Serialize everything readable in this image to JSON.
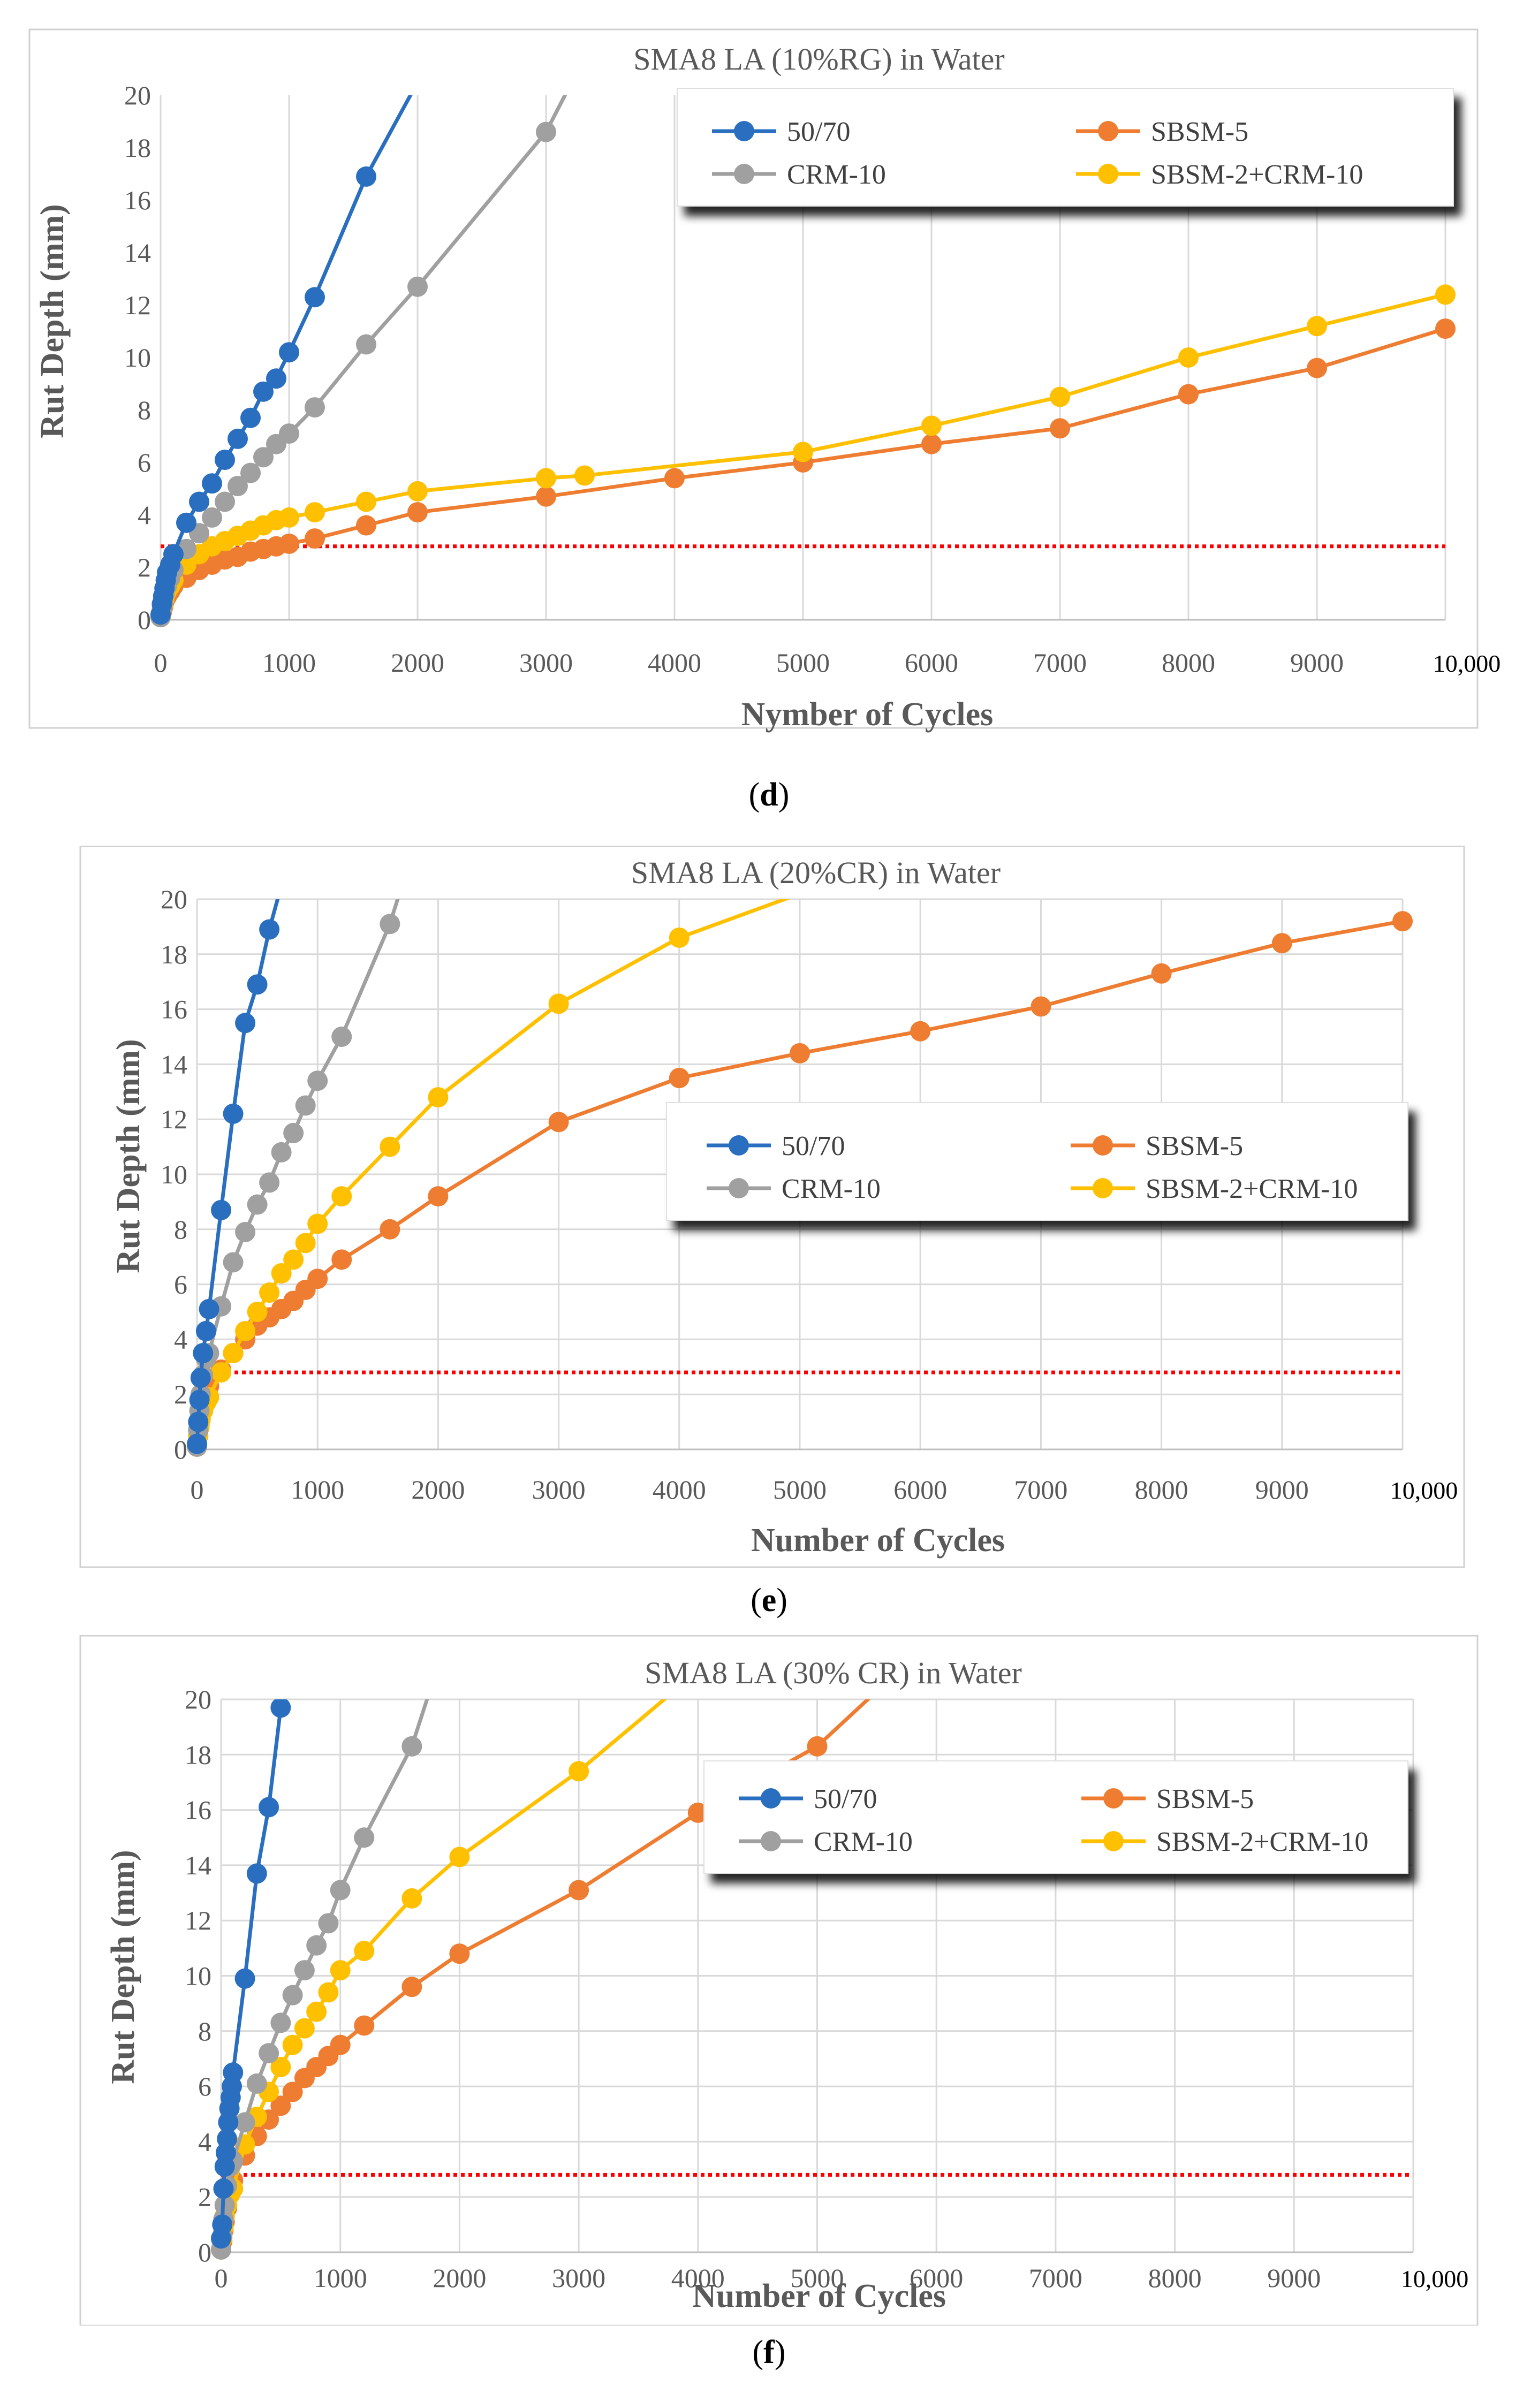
{
  "colors": {
    "c5070": "#2A6FBF",
    "sbsm5": "#EE7D31",
    "crm10": "#A0A0A0",
    "sbsm2crm10": "#FFC000",
    "threshold": "#FF0000",
    "grid": "#D9D9D9"
  },
  "captions": [
    {
      "open": "(",
      "letter": "d",
      "close": ")"
    },
    {
      "open": "(",
      "letter": "e",
      "close": ")"
    },
    {
      "open": "(",
      "letter": "f",
      "close": ")"
    }
  ],
  "chart_data": [
    {
      "type": "line",
      "title": "SMA8 LA (10%RG) in Water",
      "xlabel": "Nymber of Cycles",
      "ylabel": "Rut Depth (mm)",
      "xlim": [
        0,
        10000
      ],
      "ylim": [
        0,
        20
      ],
      "x_ticks": [
        0,
        1000,
        2000,
        3000,
        4000,
        5000,
        6000,
        7000,
        8000,
        9000,
        10000
      ],
      "x_tick_labels": [
        "0",
        "1000",
        "2000",
        "3000",
        "4000",
        "5000",
        "6000",
        "7000",
        "8000",
        "9000",
        "10,000"
      ],
      "y_ticks": [
        0,
        2,
        4,
        6,
        8,
        10,
        12,
        14,
        16,
        18,
        20
      ],
      "y_tick_labels": [
        "0",
        "2",
        "4",
        "6",
        "8",
        "10",
        "12",
        "14",
        "16",
        "18",
        "20"
      ],
      "grid": "vertical",
      "legend": "top-right",
      "threshold": 2.8,
      "series": [
        {
          "name": "50/70",
          "color": "#2A6FBF",
          "x": [
            0,
            10,
            20,
            30,
            40,
            50,
            75,
            100,
            200,
            300,
            400,
            500,
            600,
            700,
            800,
            900,
            1000,
            1200,
            1600,
            2000
          ],
          "y": [
            0.2,
            0.6,
            0.9,
            1.2,
            1.5,
            1.8,
            2.1,
            2.5,
            3.7,
            4.5,
            5.2,
            6.1,
            6.9,
            7.7,
            8.7,
            9.2,
            10.2,
            12.3,
            16.9,
            20.5
          ]
        },
        {
          "name": "SBSM-5",
          "color": "#EE7D31",
          "x": [
            0,
            10,
            20,
            30,
            50,
            75,
            100,
            200,
            300,
            400,
            500,
            600,
            700,
            800,
            900,
            1000,
            1200,
            1600,
            2000,
            3000,
            4000,
            5000,
            6000,
            7000,
            8000,
            9000,
            10000
          ],
          "y": [
            0.1,
            0.3,
            0.5,
            0.7,
            0.9,
            1.1,
            1.3,
            1.6,
            1.9,
            2.1,
            2.3,
            2.4,
            2.6,
            2.7,
            2.8,
            2.9,
            3.1,
            3.6,
            4.1,
            4.7,
            5.4,
            6.0,
            6.7,
            7.3,
            8.6,
            9.6,
            11.1
          ]
        },
        {
          "name": "CRM-10",
          "color": "#A0A0A0",
          "x": [
            0,
            10,
            20,
            30,
            50,
            75,
            100,
            200,
            300,
            400,
            500,
            600,
            700,
            800,
            900,
            1000,
            1200,
            1600,
            2000,
            3000,
            3200
          ],
          "y": [
            0.1,
            0.4,
            0.7,
            1.0,
            1.3,
            1.6,
            1.9,
            2.7,
            3.3,
            3.9,
            4.5,
            5.1,
            5.6,
            6.2,
            6.7,
            7.1,
            8.1,
            10.5,
            12.7,
            18.6,
            20.5
          ]
        },
        {
          "name": "SBSM-2+CRM-10",
          "color": "#FFC000",
          "x": [
            0,
            10,
            20,
            30,
            50,
            75,
            100,
            200,
            300,
            400,
            500,
            600,
            700,
            800,
            900,
            1000,
            1200,
            1600,
            2000,
            3000,
            3300,
            5000,
            6000,
            7000,
            8000,
            9000,
            10000
          ],
          "y": [
            0.1,
            0.4,
            0.6,
            0.8,
            1.1,
            1.3,
            1.5,
            2.1,
            2.5,
            2.8,
            3.0,
            3.2,
            3.4,
            3.6,
            3.8,
            3.9,
            4.1,
            4.5,
            4.9,
            5.4,
            5.5,
            6.4,
            7.4,
            8.5,
            10.0,
            11.2,
            12.4
          ]
        }
      ]
    },
    {
      "type": "line",
      "title": "SMA8 LA (20%CR) in Water",
      "xlabel": "Number of Cycles",
      "ylabel": "Rut Depth (mm)",
      "xlim": [
        0,
        10000
      ],
      "ylim": [
        0,
        20
      ],
      "x_ticks": [
        0,
        1000,
        2000,
        3000,
        4000,
        5000,
        6000,
        7000,
        8000,
        9000,
        10000
      ],
      "x_tick_labels": [
        "0",
        "1000",
        "2000",
        "3000",
        "4000",
        "5000",
        "6000",
        "7000",
        "8000",
        "9000",
        "10,000"
      ],
      "y_ticks": [
        0,
        2,
        4,
        6,
        8,
        10,
        12,
        14,
        16,
        18,
        20
      ],
      "y_tick_labels": [
        "0",
        "2",
        "4",
        "6",
        "8",
        "10",
        "12",
        "14",
        "16",
        "18",
        "20"
      ],
      "grid": "both",
      "legend": "center-right",
      "threshold": 2.8,
      "series": [
        {
          "name": "50/70",
          "color": "#2A6FBF",
          "x": [
            0,
            10,
            20,
            30,
            50,
            75,
            100,
            200,
            300,
            400,
            500,
            600,
            700
          ],
          "y": [
            0.2,
            1.0,
            1.8,
            2.6,
            3.5,
            4.3,
            5.1,
            8.7,
            12.2,
            15.5,
            16.9,
            18.9,
            20.5
          ]
        },
        {
          "name": "SBSM-5",
          "color": "#EE7D31",
          "x": [
            0,
            10,
            20,
            30,
            50,
            75,
            100,
            200,
            300,
            400,
            500,
            600,
            700,
            800,
            900,
            1000,
            1200,
            1600,
            2000,
            3000,
            4000,
            5000,
            6000,
            7000,
            8000,
            9000,
            10000
          ],
          "y": [
            0.1,
            0.5,
            0.9,
            1.2,
            1.6,
            2.0,
            2.3,
            2.9,
            3.5,
            4.0,
            4.5,
            4.8,
            5.1,
            5.4,
            5.8,
            6.2,
            6.9,
            8.0,
            9.2,
            11.9,
            13.5,
            14.4,
            15.2,
            16.1,
            17.3,
            18.4,
            19.2
          ]
        },
        {
          "name": "CRM-10",
          "color": "#A0A0A0",
          "x": [
            0,
            10,
            20,
            30,
            50,
            75,
            100,
            200,
            300,
            400,
            500,
            600,
            700,
            800,
            900,
            1000,
            1200,
            1600,
            1700
          ],
          "y": [
            0.1,
            0.7,
            1.4,
            2.0,
            2.7,
            3.3,
            3.5,
            5.2,
            6.8,
            7.9,
            8.9,
            9.7,
            10.8,
            11.5,
            12.5,
            13.4,
            15.0,
            19.1,
            20.5
          ]
        },
        {
          "name": "SBSM-2+CRM-10",
          "color": "#FFC000",
          "x": [
            0,
            10,
            20,
            30,
            50,
            75,
            100,
            200,
            300,
            400,
            500,
            600,
            700,
            800,
            900,
            1000,
            1200,
            1600,
            2000,
            3000,
            4000,
            5000
          ],
          "y": [
            0.1,
            0.5,
            0.8,
            1.1,
            1.4,
            1.7,
            1.9,
            2.8,
            3.5,
            4.3,
            5.0,
            5.7,
            6.4,
            6.9,
            7.5,
            8.2,
            9.2,
            11.0,
            12.8,
            16.2,
            18.6,
            20.2
          ]
        }
      ]
    },
    {
      "type": "line",
      "title": "SMA8 LA (30% CR) in Water",
      "xlabel": "Number of Cycles",
      "ylabel": "Rut Depth (mm)",
      "xlim": [
        0,
        10000
      ],
      "ylim": [
        0,
        20
      ],
      "x_ticks": [
        0,
        1000,
        2000,
        3000,
        4000,
        5000,
        6000,
        7000,
        8000,
        9000,
        10000
      ],
      "x_tick_labels": [
        "0",
        "1000",
        "2000",
        "3000",
        "4000",
        "5000",
        "6000",
        "7000",
        "8000",
        "9000",
        "10,000"
      ],
      "y_ticks": [
        0,
        2,
        4,
        6,
        8,
        10,
        12,
        14,
        16,
        18,
        20
      ],
      "y_tick_labels": [
        "0",
        "2",
        "4",
        "6",
        "8",
        "10",
        "12",
        "14",
        "16",
        "18",
        "20"
      ],
      "grid": "both",
      "legend": "upper-right",
      "threshold": 2.8,
      "series": [
        {
          "name": "50/70",
          "color": "#2A6FBF",
          "x": [
            0,
            10,
            20,
            30,
            40,
            50,
            60,
            70,
            80,
            90,
            100,
            200,
            300,
            400,
            500
          ],
          "y": [
            0.5,
            1.0,
            2.3,
            3.1,
            3.6,
            4.1,
            4.7,
            5.2,
            5.6,
            6.0,
            6.5,
            9.9,
            13.7,
            16.1,
            19.7
          ]
        },
        {
          "name": "SBSM-5",
          "color": "#EE7D31",
          "x": [
            0,
            10,
            20,
            30,
            50,
            75,
            100,
            200,
            300,
            400,
            500,
            600,
            700,
            800,
            900,
            1000,
            1200,
            1600,
            2000,
            3000,
            4000,
            5000,
            5500
          ],
          "y": [
            0.1,
            0.4,
            0.8,
            1.1,
            1.6,
            2.1,
            2.6,
            3.5,
            4.2,
            4.8,
            5.3,
            5.8,
            6.3,
            6.7,
            7.1,
            7.5,
            8.2,
            9.6,
            10.8,
            13.1,
            15.9,
            18.3,
            20.3
          ]
        },
        {
          "name": "CRM-10",
          "color": "#A0A0A0",
          "x": [
            0,
            10,
            20,
            30,
            50,
            75,
            100,
            200,
            300,
            400,
            500,
            600,
            700,
            800,
            900,
            1000,
            1200,
            1600,
            1750
          ],
          "y": [
            0.1,
            0.6,
            1.2,
            1.7,
            2.4,
            3.1,
            3.3,
            4.7,
            6.1,
            7.2,
            8.3,
            9.3,
            10.2,
            11.1,
            11.9,
            13.1,
            15.0,
            18.3,
            20.3
          ]
        },
        {
          "name": "SBSM-2+CRM-10",
          "color": "#FFC000",
          "x": [
            0,
            10,
            20,
            30,
            50,
            75,
            100,
            200,
            300,
            400,
            500,
            600,
            700,
            800,
            900,
            1000,
            1200,
            1600,
            2000,
            3000,
            3800
          ],
          "y": [
            0.1,
            0.5,
            0.9,
            1.3,
            1.7,
            2.1,
            2.3,
            3.9,
            4.9,
            5.8,
            6.7,
            7.5,
            8.1,
            8.7,
            9.4,
            10.2,
            10.9,
            12.8,
            14.3,
            17.4,
            20.3
          ]
        }
      ]
    }
  ]
}
